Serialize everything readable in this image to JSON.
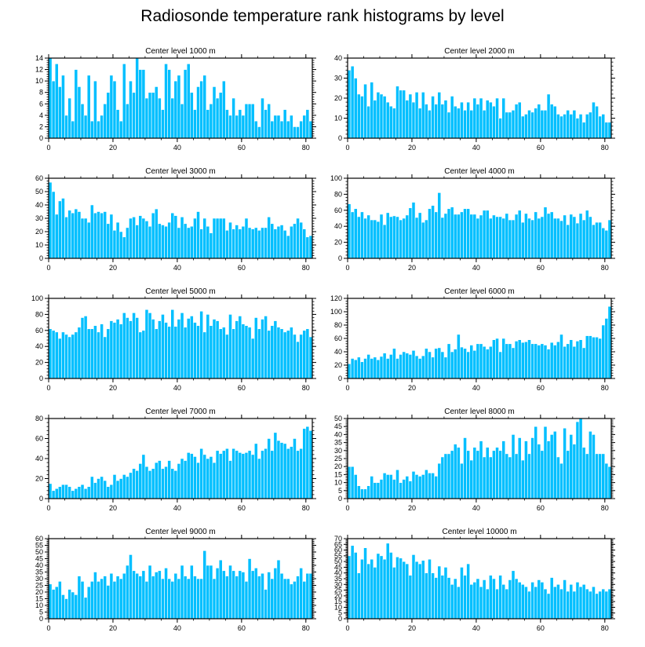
{
  "title": "Radiosonde temperature rank histograms by level",
  "colors": {
    "bar": "#00BFFF",
    "bar_edge": "#ffffff",
    "axis": "#000000"
  },
  "chart_data": [
    {
      "type": "bar",
      "title": "Center level 1000 m",
      "xlim": [
        0,
        82
      ],
      "ylim": [
        0,
        14
      ],
      "xticks": [
        0,
        20,
        40,
        60,
        80
      ],
      "yticks": [
        0,
        2,
        4,
        6,
        8,
        10,
        12,
        14
      ],
      "values": [
        14,
        10,
        13,
        9,
        11,
        4,
        7,
        3,
        12,
        9,
        6,
        4,
        11,
        3,
        10,
        3,
        4,
        6,
        8,
        11,
        10,
        5,
        3,
        13,
        6,
        10,
        8,
        14,
        12,
        12,
        7,
        8,
        8,
        9,
        7,
        5,
        13,
        12,
        7,
        10,
        11,
        6,
        12,
        13,
        8,
        5,
        9,
        10,
        11,
        5,
        6,
        9,
        7,
        8,
        10,
        5,
        4,
        7,
        4,
        5,
        4,
        6,
        6,
        6,
        3,
        2,
        7,
        5,
        6,
        3,
        4,
        4,
        3,
        5,
        3,
        4,
        2,
        2,
        3,
        4,
        5,
        3
      ]
    },
    {
      "type": "bar",
      "title": "Center level 2000 m",
      "xlim": [
        0,
        82
      ],
      "ylim": [
        0,
        40
      ],
      "xticks": [
        0,
        20,
        40,
        60,
        80
      ],
      "yticks": [
        0,
        10,
        20,
        30,
        40
      ],
      "values": [
        34,
        36,
        30,
        22,
        21,
        27,
        16,
        28,
        19,
        23,
        22,
        21,
        18,
        16,
        15,
        26,
        24,
        24,
        19,
        22,
        18,
        23,
        15,
        23,
        17,
        14,
        21,
        17,
        23,
        17,
        19,
        13,
        21,
        16,
        15,
        18,
        14,
        18,
        14,
        20,
        17,
        20,
        14,
        19,
        18,
        16,
        20,
        10,
        20,
        13,
        13,
        14,
        17,
        18,
        11,
        12,
        14,
        13,
        15,
        17,
        14,
        14,
        22,
        17,
        16,
        12,
        11,
        12,
        14,
        12,
        14,
        10,
        12,
        8,
        12,
        13,
        18,
        16,
        11,
        12,
        8,
        8
      ]
    },
    {
      "type": "bar",
      "title": "Center level 3000 m",
      "xlim": [
        0,
        82
      ],
      "ylim": [
        0,
        60
      ],
      "xticks": [
        0,
        20,
        40,
        60,
        80
      ],
      "yticks": [
        0,
        10,
        20,
        30,
        40,
        50,
        60
      ],
      "values": [
        57,
        50,
        33,
        43,
        45,
        31,
        36,
        34,
        37,
        35,
        30,
        30,
        27,
        40,
        34,
        35,
        34,
        35,
        26,
        33,
        21,
        27,
        20,
        16,
        23,
        30,
        31,
        25,
        32,
        30,
        28,
        24,
        34,
        37,
        26,
        25,
        24,
        27,
        34,
        32,
        23,
        31,
        26,
        23,
        24,
        30,
        35,
        22,
        30,
        24,
        19,
        30,
        30,
        30,
        30,
        21,
        27,
        22,
        25,
        22,
        24,
        30,
        23,
        22,
        23,
        21,
        23,
        23,
        31,
        26,
        22,
        24,
        25,
        21,
        17,
        24,
        26,
        30,
        27,
        22,
        16,
        17
      ]
    },
    {
      "type": "bar",
      "title": "Center level 4000 m",
      "xlim": [
        0,
        82
      ],
      "ylim": [
        0,
        100
      ],
      "xticks": [
        0,
        20,
        40,
        60,
        80
      ],
      "yticks": [
        0,
        20,
        40,
        60,
        80,
        100
      ],
      "values": [
        68,
        58,
        62,
        52,
        58,
        50,
        54,
        48,
        48,
        46,
        55,
        42,
        57,
        52,
        53,
        52,
        48,
        50,
        54,
        63,
        70,
        51,
        57,
        45,
        48,
        62,
        66,
        58,
        82,
        51,
        56,
        62,
        64,
        55,
        55,
        58,
        62,
        62,
        55,
        55,
        50,
        54,
        60,
        60,
        50,
        54,
        52,
        52,
        50,
        56,
        48,
        48,
        55,
        60,
        45,
        56,
        50,
        48,
        58,
        50,
        52,
        64,
        56,
        58,
        50,
        50,
        47,
        54,
        42,
        55,
        52,
        44,
        56,
        48,
        60,
        52,
        42,
        45,
        45,
        38,
        35,
        48
      ]
    },
    {
      "type": "bar",
      "title": "Center level 5000 m",
      "xlim": [
        0,
        82
      ],
      "ylim": [
        0,
        100
      ],
      "xticks": [
        0,
        20,
        40,
        60,
        80
      ],
      "yticks": [
        0,
        20,
        40,
        60,
        80,
        100
      ],
      "values": [
        62,
        60,
        58,
        50,
        58,
        55,
        52,
        55,
        58,
        64,
        76,
        78,
        62,
        62,
        66,
        58,
        68,
        52,
        62,
        72,
        70,
        74,
        68,
        82,
        76,
        72,
        82,
        76,
        58,
        60,
        86,
        82,
        74,
        62,
        72,
        80,
        70,
        65,
        86,
        65,
        74,
        82,
        64,
        75,
        78,
        70,
        66,
        84,
        58,
        80,
        66,
        74,
        72,
        62,
        64,
        55,
        80,
        62,
        72,
        78,
        68,
        66,
        64,
        50,
        76,
        62,
        74,
        78,
        60,
        66,
        72,
        64,
        62,
        58,
        60,
        64,
        55,
        46,
        55,
        60,
        62,
        52
      ]
    },
    {
      "type": "bar",
      "title": "Center level 6000 m",
      "xlim": [
        0,
        82
      ],
      "ylim": [
        0,
        120
      ],
      "xticks": [
        0,
        20,
        40,
        60,
        80
      ],
      "yticks": [
        0,
        20,
        40,
        60,
        80,
        100,
        120
      ],
      "values": [
        22,
        30,
        28,
        32,
        25,
        30,
        36,
        30,
        32,
        28,
        33,
        38,
        30,
        36,
        45,
        30,
        36,
        40,
        38,
        36,
        42,
        34,
        30,
        34,
        45,
        40,
        32,
        45,
        46,
        40,
        32,
        52,
        40,
        44,
        66,
        47,
        45,
        40,
        50,
        42,
        52,
        52,
        48,
        44,
        48,
        58,
        60,
        40,
        60,
        52,
        52,
        46,
        56,
        58,
        54,
        55,
        58,
        52,
        52,
        50,
        52,
        50,
        44,
        54,
        50,
        55,
        66,
        48,
        52,
        58,
        48,
        56,
        58,
        46,
        64,
        64,
        62,
        62,
        60,
        80,
        90,
        108
      ]
    },
    {
      "type": "bar",
      "title": "Center level 7000 m",
      "xlim": [
        0,
        82
      ],
      "ylim": [
        0,
        80
      ],
      "xticks": [
        0,
        20,
        40,
        60,
        80
      ],
      "yticks": [
        0,
        20,
        40,
        60,
        80
      ],
      "values": [
        15,
        8,
        10,
        12,
        14,
        14,
        12,
        8,
        10,
        12,
        14,
        10,
        12,
        22,
        16,
        20,
        22,
        18,
        12,
        14,
        24,
        18,
        20,
        24,
        22,
        26,
        30,
        28,
        35,
        44,
        32,
        28,
        30,
        36,
        38,
        30,
        32,
        38,
        30,
        28,
        35,
        40,
        38,
        46,
        45,
        42,
        36,
        50,
        44,
        40,
        42,
        36,
        48,
        45,
        48,
        50,
        38,
        50,
        48,
        46,
        45,
        46,
        48,
        44,
        55,
        40,
        48,
        50,
        60,
        48,
        66,
        58,
        56,
        55,
        50,
        52,
        60,
        48,
        50,
        70,
        72,
        68
      ]
    },
    {
      "type": "bar",
      "title": "Center level 8000 m",
      "xlim": [
        0,
        82
      ],
      "ylim": [
        0,
        50
      ],
      "xticks": [
        0,
        20,
        40,
        60,
        80
      ],
      "yticks": [
        0,
        5,
        10,
        15,
        20,
        25,
        30,
        35,
        40,
        45,
        50
      ],
      "values": [
        20,
        20,
        15,
        8,
        6,
        6,
        8,
        14,
        10,
        10,
        12,
        16,
        15,
        15,
        12,
        18,
        10,
        12,
        14,
        11,
        17,
        15,
        14,
        15,
        18,
        16,
        16,
        14,
        22,
        26,
        28,
        28,
        30,
        34,
        32,
        22,
        38,
        30,
        24,
        32,
        30,
        36,
        26,
        32,
        26,
        30,
        32,
        30,
        36,
        28,
        26,
        40,
        28,
        38,
        24,
        36,
        28,
        38,
        45,
        34,
        30,
        45,
        36,
        40,
        42,
        26,
        22,
        44,
        30,
        40,
        34,
        48,
        50,
        32,
        28,
        42,
        40,
        28,
        28,
        28,
        22,
        20
      ]
    },
    {
      "type": "bar",
      "title": "Center level 9000 m",
      "xlim": [
        0,
        82
      ],
      "ylim": [
        0,
        60
      ],
      "xticks": [
        0,
        20,
        40,
        60,
        80
      ],
      "yticks": [
        0,
        5,
        10,
        15,
        20,
        25,
        30,
        35,
        40,
        45,
        50,
        55,
        60
      ],
      "values": [
        26,
        22,
        24,
        28,
        18,
        15,
        22,
        20,
        18,
        32,
        28,
        16,
        24,
        28,
        35,
        28,
        30,
        32,
        25,
        34,
        28,
        32,
        30,
        34,
        40,
        48,
        36,
        34,
        32,
        36,
        28,
        40,
        32,
        35,
        36,
        30,
        38,
        30,
        28,
        34,
        30,
        40,
        32,
        30,
        40,
        32,
        30,
        30,
        51,
        40,
        40,
        30,
        38,
        44,
        36,
        32,
        40,
        36,
        32,
        36,
        35,
        28,
        45,
        36,
        38,
        32,
        34,
        22,
        35,
        30,
        38,
        44,
        34,
        30,
        30,
        26,
        28,
        32,
        38,
        28,
        34,
        34
      ]
    },
    {
      "type": "bar",
      "title": "Center level 10000 m",
      "xlim": [
        0,
        82
      ],
      "ylim": [
        0,
        70
      ],
      "xticks": [
        0,
        20,
        40,
        60,
        80
      ],
      "yticks": [
        0,
        5,
        10,
        15,
        20,
        25,
        30,
        35,
        40,
        45,
        50,
        55,
        60,
        65,
        70
      ],
      "values": [
        55,
        64,
        58,
        40,
        52,
        62,
        48,
        52,
        45,
        57,
        55,
        52,
        66,
        58,
        45,
        54,
        53,
        50,
        48,
        38,
        56,
        50,
        48,
        51,
        40,
        52,
        40,
        36,
        46,
        38,
        45,
        36,
        30,
        35,
        28,
        45,
        38,
        48,
        30,
        32,
        35,
        28,
        34,
        26,
        38,
        35,
        26,
        38,
        30,
        26,
        34,
        42,
        35,
        32,
        30,
        28,
        24,
        32,
        28,
        34,
        32,
        26,
        22,
        36,
        28,
        30,
        26,
        34,
        24,
        30,
        24,
        32,
        28,
        30,
        26,
        24,
        28,
        22,
        24,
        26,
        24,
        26
      ]
    }
  ]
}
